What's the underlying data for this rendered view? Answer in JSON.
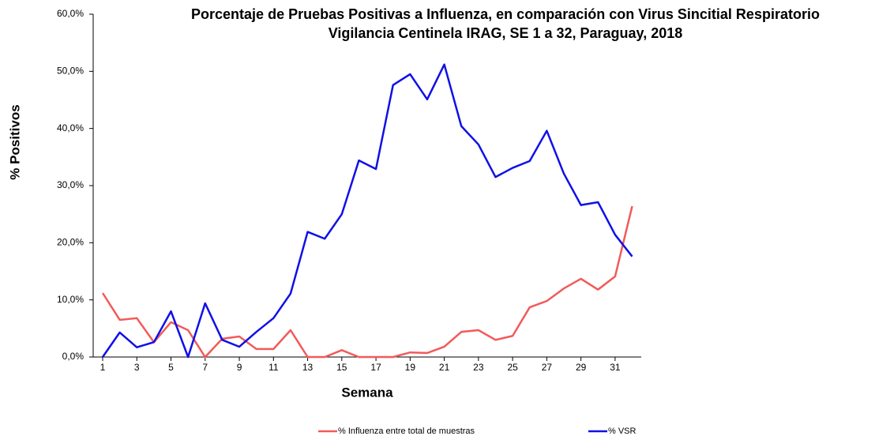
{
  "chart_data": {
    "type": "line",
    "title": "Porcentaje de Pruebas Positivas a Influenza, en comparación con Virus Sincitial Respiratorio",
    "subtitle": "Vigilancia Centinela IRAG, SE 1 a 32, Paraguay, 2018",
    "x_label": "Semana",
    "y_label": "% Positivos",
    "categories": [
      1,
      null,
      3,
      null,
      5,
      null,
      7,
      null,
      9,
      null,
      11,
      null,
      13,
      null,
      15,
      null,
      17,
      null,
      19,
      null,
      21,
      null,
      23,
      null,
      25,
      null,
      27,
      null,
      29,
      null,
      31,
      null
    ],
    "series": [
      {
        "name": "% Influenza entre total de muestras",
        "color": "#f25a5a",
        "values": [
          11.2,
          6.5,
          6.8,
          2.6,
          6.1,
          4.7,
          0,
          3.2,
          3.6,
          1.4,
          1.4,
          4.7,
          0,
          0,
          1.2,
          0,
          0,
          0,
          0.8,
          0.7,
          1.8,
          4.4,
          4.7,
          3.0,
          3.7,
          8.7,
          9.8,
          12.0,
          13.7,
          11.8,
          14.1,
          26.4
        ]
      },
      {
        "name": "% VSR",
        "color": "#1010e8",
        "values": [
          0,
          4.3,
          1.7,
          2.6,
          8.0,
          0,
          9.4,
          3.0,
          1.8,
          4.4,
          6.8,
          11.1,
          21.9,
          20.7,
          25.0,
          34.4,
          32.9,
          47.6,
          49.5,
          45.1,
          51.2,
          40.4,
          37.2,
          31.5,
          33.1,
          34.3,
          39.6,
          32.1,
          26.6,
          27.1,
          21.4,
          17.6
        ]
      }
    ],
    "ylim": [
      0,
      60
    ],
    "yticks": [
      {
        "value": 0,
        "label": "0,0%"
      },
      {
        "value": 10,
        "label": "10,0%"
      },
      {
        "value": 20,
        "label": "20,0%"
      },
      {
        "value": 30,
        "label": "30,0%"
      },
      {
        "value": 40,
        "label": "40,0%"
      },
      {
        "value": 50,
        "label": "50,0%"
      },
      {
        "value": 60,
        "label": "60,0%"
      }
    ],
    "grid": false,
    "legend": "bottom"
  }
}
